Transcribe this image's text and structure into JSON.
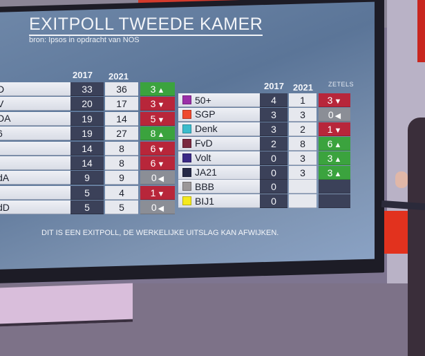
{
  "colors": {
    "up": "#3ba33e",
    "down": "#b8263a",
    "same": "#8b8e96",
    "empty": "#3b4159"
  },
  "header": {
    "title": "EXITPOLL TWEEDE KAMER",
    "subtitle": "bron: Ipsos in opdracht van NOS"
  },
  "left_table": {
    "col_2017": "2017",
    "col_2021": "2021",
    "rows": [
      {
        "name": "D",
        "y2017": "33",
        "y2021": "36",
        "change": "3",
        "dir": "up"
      },
      {
        "name": "V",
        "y2017": "20",
        "y2021": "17",
        "change": "3",
        "dir": "down"
      },
      {
        "name": "DA",
        "y2017": "19",
        "y2021": "14",
        "change": "5",
        "dir": "down"
      },
      {
        "name": "6",
        "y2017": "19",
        "y2021": "27",
        "change": "8",
        "dir": "up"
      },
      {
        "name": "",
        "y2017": "14",
        "y2021": "8",
        "change": "6",
        "dir": "down"
      },
      {
        "name": "",
        "y2017": "14",
        "y2021": "8",
        "change": "6",
        "dir": "down"
      },
      {
        "name": "dA",
        "y2017": "9",
        "y2021": "9",
        "change": "0",
        "dir": "same"
      },
      {
        "name": "",
        "y2017": "5",
        "y2021": "4",
        "change": "1",
        "dir": "down"
      },
      {
        "name": "dD",
        "y2017": "5",
        "y2021": "5",
        "change": "0",
        "dir": "same"
      }
    ]
  },
  "right_table": {
    "col_2017": "2017",
    "col_2021": "2021",
    "col_zetels": "ZETELS",
    "rows": [
      {
        "name": "50+",
        "swatch": "#9b2fa8",
        "y2017": "4",
        "y2021": "1",
        "change": "3",
        "dir": "down"
      },
      {
        "name": "SGP",
        "swatch": "#ef4a2f",
        "y2017": "3",
        "y2021": "3",
        "change": "0",
        "dir": "same"
      },
      {
        "name": "Denk",
        "swatch": "#3bbccc",
        "y2017": "3",
        "y2021": "2",
        "change": "1",
        "dir": "down"
      },
      {
        "name": "FvD",
        "swatch": "#7a2940",
        "y2017": "2",
        "y2021": "8",
        "change": "6",
        "dir": "up"
      },
      {
        "name": "Volt",
        "swatch": "#3b2a86",
        "y2017": "0",
        "y2021": "3",
        "change": "3",
        "dir": "up"
      },
      {
        "name": "JA21",
        "swatch": "#262a48",
        "y2017": "0",
        "y2021": "3",
        "change": "3",
        "dir": "up"
      },
      {
        "name": "BBB",
        "swatch": "#9b9798",
        "y2017": "0",
        "y2021": "",
        "change": "",
        "dir": "empty"
      },
      {
        "name": "BIJ1",
        "swatch": "#f5e91c",
        "y2017": "0",
        "y2021": "",
        "change": "",
        "dir": "empty"
      }
    ]
  },
  "footer": {
    "disclaimer": "DIT IS EEN EXITPOLL, DE WERKELIJKE UITSLAG KAN AFWIJKEN."
  },
  "icons": {
    "up": "▲",
    "down": "▼",
    "same": "◀"
  }
}
